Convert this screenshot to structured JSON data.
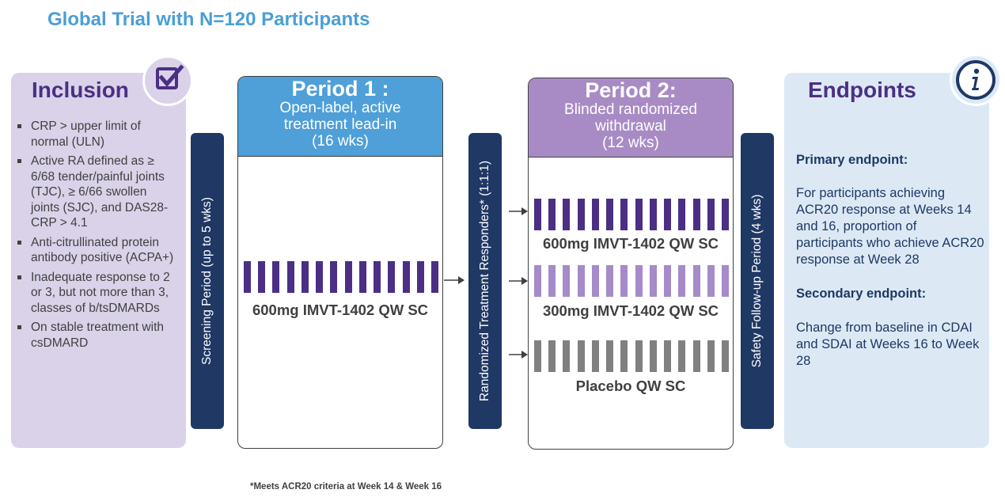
{
  "title": "Global Trial with N=120 Participants",
  "inclusion": {
    "heading": "Inclusion",
    "items": [
      "CRP > upper limit of normal (ULN)",
      "Active RA defined as ≥ 6/68 tender/painful joints (TJC), ≥ 6/66 swollen joints (SJC), and DAS28-CRP > 4.1",
      "Anti-citrullinated protein antibody positive (ACPA+)",
      "Inadequate response to 2 or 3, but not more than 3, classes of b/tsDMARDs",
      "On stable treatment with csDMARD"
    ]
  },
  "screening": {
    "label": "Screening Period (up to 5 wks)"
  },
  "period1": {
    "title": "Period 1 :",
    "subtitle_line1": "Open-label, active",
    "subtitle_line2": "treatment lead-in",
    "duration": "(16 wks)",
    "arm_label": "600mg IMVT-1402 QW SC"
  },
  "randomized": {
    "label": "Randomized Treatment  Responders* (1:1:1)"
  },
  "period2": {
    "title": "Period 2:",
    "subtitle_line1": "Blinded randomized",
    "subtitle_line2": "withdrawal",
    "duration": "(12 wks)",
    "arms": [
      {
        "label": "600mg IMVT-1402 QW SC",
        "color": "#4b2f84"
      },
      {
        "label": "300mg IMVT-1402 QW SC",
        "color": "#a58bc8"
      },
      {
        "label": "Placebo QW SC",
        "color": "#808080"
      }
    ]
  },
  "safety": {
    "label": "Safety Follow-up Period (4 wks)"
  },
  "endpoints": {
    "heading": "Endpoints",
    "primary_heading": "Primary endpoint:",
    "primary_text": "For participants achieving ACR20 response at Weeks 14 and 16, proportion of participants who achieve ACR20 response at Week 28",
    "secondary_heading": "Secondary endpoint:",
    "secondary_text": "Change from baseline in CDAI and SDAI at Weeks 16 to Week 28"
  },
  "footnote": "*Meets ACR20 criteria at Week 14 & Week 16",
  "colors": {
    "title": "#4a9fd4",
    "purple_dark": "#4b2f84",
    "purple_light": "#a58bc8",
    "period1_header": "#4f9fd8",
    "period2_header": "#a88bc4",
    "navy": "#1f3864",
    "gray": "#808080"
  },
  "icons": {
    "inclusion": "checkbox-icon",
    "endpoints": "info-icon"
  }
}
